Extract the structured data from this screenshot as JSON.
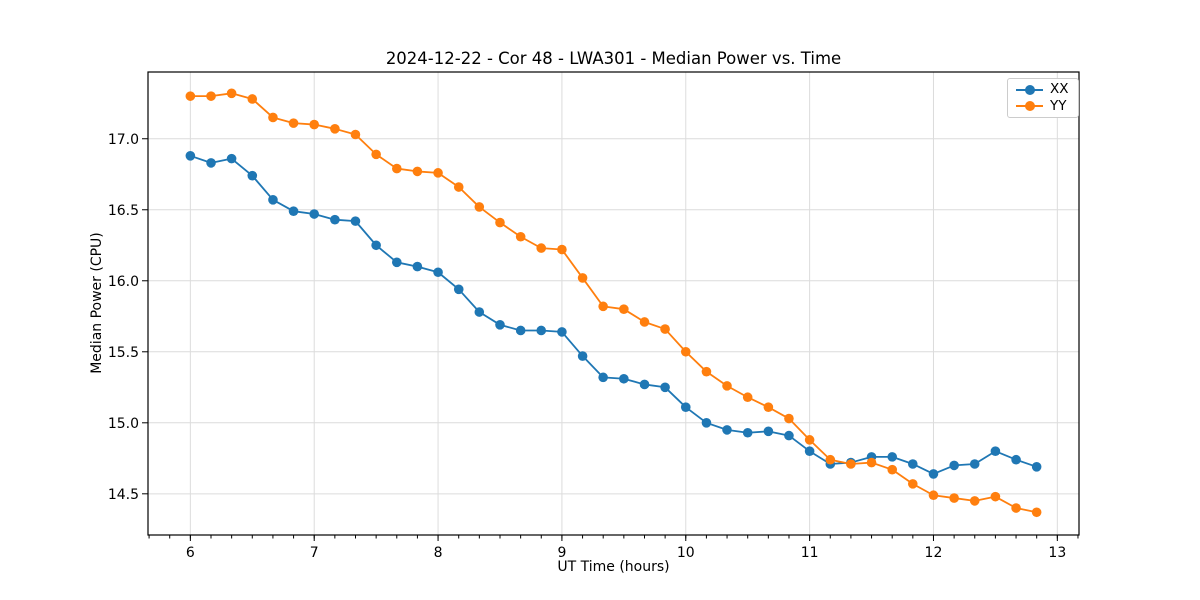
{
  "chart_data": {
    "type": "line",
    "title": "2024-12-22 - Cor 48 - LWA301 - Median Power vs. Time",
    "xlabel": "UT Time (hours)",
    "ylabel": "Median Power (CPU)",
    "xlim": [
      5.658,
      13.175
    ],
    "ylim": [
      14.21,
      17.47
    ],
    "x_major_ticks": [
      6,
      7,
      8,
      9,
      10,
      11,
      12,
      13
    ],
    "x_tick_labels": [
      "6",
      "7",
      "8",
      "9",
      "10",
      "11",
      "12",
      "13"
    ],
    "x_minor_step": 0.166667,
    "y_major_ticks": [
      14.5,
      15.0,
      15.5,
      16.0,
      16.5,
      17.0
    ],
    "y_tick_labels": [
      "14.5",
      "15.0",
      "15.5",
      "16.0",
      "16.5",
      "17.0"
    ],
    "grid": true,
    "grid_color": "#dcdcdc",
    "legend": {
      "position": "top-right",
      "entries": [
        "XX",
        "YY"
      ]
    },
    "x": [
      6.0,
      6.167,
      6.333,
      6.5,
      6.667,
      6.833,
      7.0,
      7.167,
      7.333,
      7.5,
      7.667,
      7.833,
      8.0,
      8.167,
      8.333,
      8.5,
      8.667,
      8.833,
      9.0,
      9.167,
      9.333,
      9.5,
      9.667,
      9.833,
      10.0,
      10.167,
      10.333,
      10.5,
      10.667,
      10.833,
      11.0,
      11.167,
      11.333,
      11.5,
      11.667,
      11.833,
      12.0,
      12.167,
      12.333,
      12.5,
      12.667,
      12.833
    ],
    "series": [
      {
        "name": "XX",
        "color": "#1f77b4",
        "values": [
          16.88,
          16.83,
          16.86,
          16.74,
          16.57,
          16.49,
          16.47,
          16.43,
          16.42,
          16.25,
          16.13,
          16.1,
          16.06,
          15.94,
          15.78,
          15.69,
          15.65,
          15.65,
          15.64,
          15.47,
          15.32,
          15.31,
          15.27,
          15.25,
          15.11,
          15.0,
          14.95,
          14.93,
          14.94,
          14.91,
          14.8,
          14.71,
          14.72,
          14.76,
          14.76,
          14.71,
          14.64,
          14.7,
          14.71,
          14.8,
          14.74,
          14.69
        ]
      },
      {
        "name": "YY",
        "color": "#ff7f0e",
        "values": [
          17.3,
          17.3,
          17.32,
          17.28,
          17.15,
          17.11,
          17.1,
          17.07,
          17.03,
          16.89,
          16.79,
          16.77,
          16.76,
          16.66,
          16.52,
          16.41,
          16.31,
          16.23,
          16.22,
          16.02,
          15.82,
          15.8,
          15.71,
          15.66,
          15.5,
          15.36,
          15.26,
          15.18,
          15.11,
          15.03,
          14.88,
          14.74,
          14.71,
          14.72,
          14.67,
          14.57,
          14.49,
          14.47,
          14.45,
          14.48,
          14.4,
          14.37
        ]
      }
    ]
  }
}
